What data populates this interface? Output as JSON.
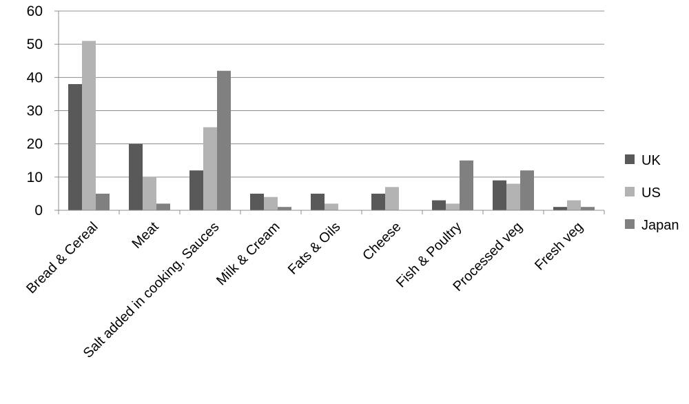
{
  "chart_data": {
    "type": "bar",
    "categories": [
      "Bread & Cereal",
      "Meat",
      "Salt added in cooking, Sauces",
      "Milk & Cream",
      "Fats & Oils",
      "Cheese",
      "Fish & Poultry",
      "Processed veg",
      "Fresh veg"
    ],
    "series": [
      {
        "name": "UK",
        "color": "#595959",
        "values": [
          38,
          20,
          12,
          5,
          5,
          5,
          3,
          9,
          1
        ]
      },
      {
        "name": "US",
        "color": "#b3b3b3",
        "values": [
          51,
          10,
          25,
          4,
          2,
          7,
          2,
          8,
          3
        ]
      },
      {
        "name": "Japan",
        "color": "#808080",
        "values": [
          5,
          2,
          42,
          1,
          0,
          0,
          15,
          12,
          1
        ]
      }
    ],
    "y_ticks": [
      "0",
      "10",
      "20",
      "30",
      "40",
      "50",
      "60"
    ],
    "ylim": [
      0,
      60
    ],
    "grid": true,
    "legend": "right"
  }
}
